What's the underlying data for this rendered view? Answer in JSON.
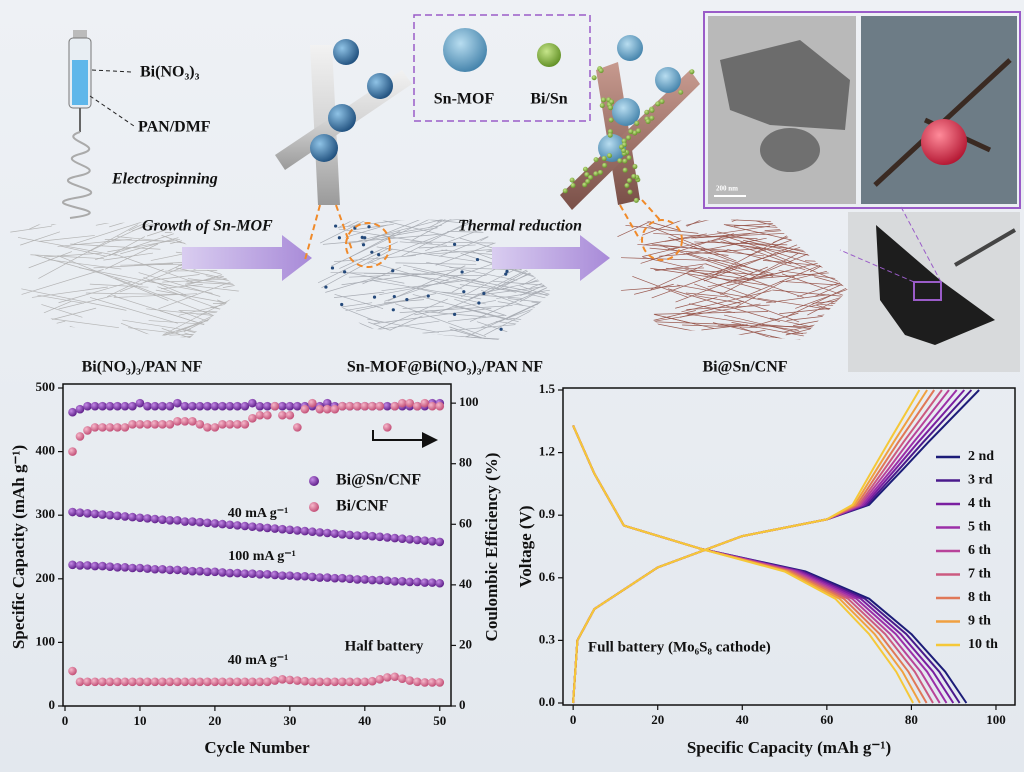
{
  "schematic": {
    "precursor": "Bi(NO₃)₃",
    "solvent": "PAN/DMF",
    "method": "Electrospinning",
    "step1": "Growth of Sn-MOF",
    "step2": "Thermal reduction",
    "product1": "Bi(NO₃)₃/PAN NF",
    "product2": "Sn-MOF@Bi(NO₃)₃/PAN NF",
    "product3": "Bi@Sn/CNF",
    "legend_mof": "Sn-MOF",
    "legend_bisn": "Bi/Sn",
    "scale_bar": "200 nm"
  },
  "chart_data": [
    {
      "type": "scatter",
      "xlabel": "Cycle Number",
      "ylabel": "Specific Capacity (mAh g⁻¹)",
      "y2label": "Coulombic Efficiency  (%)",
      "annotation": "Half battery",
      "xlim": [
        0,
        51.5
      ],
      "xticks": [
        0,
        10,
        20,
        30,
        40,
        50
      ],
      "ylim": [
        0,
        500
      ],
      "yticks": [
        0,
        100,
        200,
        300,
        400,
        500
      ],
      "y2lim": [
        0,
        105
      ],
      "y2ticks": [
        0,
        20,
        40,
        60,
        80,
        100
      ],
      "x": [
        1,
        2,
        3,
        4,
        5,
        6,
        7,
        8,
        9,
        10,
        11,
        12,
        13,
        14,
        15,
        16,
        17,
        18,
        19,
        20,
        21,
        22,
        23,
        24,
        25,
        26,
        27,
        28,
        29,
        30,
        31,
        32,
        33,
        34,
        35,
        36,
        37,
        38,
        39,
        40,
        41,
        42,
        43,
        44,
        45,
        46,
        47,
        48,
        49,
        50
      ],
      "series": [
        {
          "label": "40 mA g⁻¹",
          "color": "#7b2ea6",
          "values": [
            305,
            304,
            303,
            302,
            301,
            300,
            299,
            298,
            297,
            296,
            295,
            294,
            293,
            292,
            292,
            290,
            290,
            289,
            288,
            287,
            286,
            285,
            284,
            283,
            282,
            281,
            280,
            279,
            278,
            277,
            276,
            275,
            274,
            273,
            272,
            271,
            270,
            269,
            268,
            268,
            267,
            266,
            265,
            264,
            263,
            262,
            261,
            260,
            259,
            258
          ]
        },
        {
          "label": "100 mA g⁻¹",
          "color": "#7b2ea6",
          "values": [
            222,
            221,
            221,
            220,
            220,
            219,
            218,
            218,
            217,
            217,
            216,
            215,
            215,
            214,
            214,
            213,
            212,
            212,
            211,
            211,
            210,
            209,
            209,
            208,
            208,
            207,
            207,
            206,
            205,
            205,
            204,
            204,
            203,
            202,
            202,
            201,
            201,
            200,
            199,
            199,
            198,
            198,
            197,
            196,
            196,
            195,
            195,
            194,
            194,
            193
          ]
        },
        {
          "label": "40 mA g⁻¹",
          "color": "#d4688e",
          "values": [
            55,
            38,
            38,
            38,
            38,
            38,
            38,
            38,
            38,
            38,
            38,
            38,
            38,
            38,
            38,
            38,
            38,
            38,
            38,
            38,
            38,
            38,
            38,
            38,
            38,
            38,
            38,
            40,
            42,
            41,
            40,
            39,
            38,
            38,
            38,
            38,
            38,
            38,
            38,
            38,
            39,
            42,
            45,
            46,
            43,
            40,
            38,
            37,
            37,
            37
          ]
        },
        {
          "name": "Bi@Sn/CNF",
          "axis": "y2",
          "color": "#7b2ea6",
          "values": [
            97,
            98,
            99,
            99,
            99,
            99,
            99,
            99,
            99,
            100,
            99,
            99,
            99,
            99,
            100,
            99,
            99,
            99,
            99,
            99,
            99,
            99,
            99,
            99,
            100,
            99,
            99,
            99,
            99,
            99,
            99,
            99,
            99,
            99,
            100,
            99,
            99,
            99,
            99,
            99,
            99,
            99,
            99,
            99,
            99,
            99,
            99,
            99,
            100,
            100
          ]
        },
        {
          "name": "Bi/CNF",
          "axis": "y2",
          "color": "#d4688e",
          "values": [
            84,
            89,
            91,
            92,
            92,
            92,
            92,
            92,
            93,
            93,
            93,
            93,
            93,
            93,
            94,
            94,
            94,
            93,
            92,
            92,
            93,
            93,
            93,
            93,
            95,
            96,
            96,
            99,
            96,
            96,
            92,
            98,
            100,
            98,
            98,
            98,
            99,
            99,
            99,
            99,
            99,
            99,
            92,
            99,
            100,
            100,
            99,
            100,
            99,
            99
          ]
        }
      ]
    },
    {
      "type": "line",
      "xlabel": "Specific Capacity (mAh g⁻¹)",
      "ylabel": "Voltage (V)",
      "annotation": "Full battery (Mo₆S₈ cathode)",
      "xlim": [
        -2.4,
        104.5
      ],
      "xticks": [
        0,
        20,
        40,
        60,
        80,
        100
      ],
      "ylim": [
        0,
        1.5
      ],
      "yticks": [
        {
          "value": 0,
          "label": "0.0"
        },
        0.3,
        0.6,
        0.9,
        1.2,
        1.5
      ],
      "series": [
        {
          "name": "2 nd",
          "color": "#1c1c78",
          "x": [
            0,
            5,
            12,
            30,
            55,
            70,
            80,
            88,
            93,
            null,
            0,
            1,
            5,
            20,
            40,
            60,
            70,
            78,
            84,
            96
          ],
          "values": [
            1.33,
            1.1,
            0.85,
            0.74,
            0.63,
            0.5,
            0.33,
            0.15,
            0,
            null,
            0,
            0.3,
            0.45,
            0.65,
            0.8,
            0.88,
            0.95,
            1.12,
            1.25,
            1.5
          ]
        },
        {
          "name": "3 rd",
          "color": "#4a1a8c",
          "x": [
            0,
            5,
            12,
            30,
            54.4,
            69,
            78.8,
            86.6,
            91.4,
            null,
            0,
            1,
            5,
            20,
            40,
            60,
            69.5,
            77.1,
            82.8,
            94.2
          ],
          "values": [
            1.33,
            1.1,
            0.85,
            0.74,
            0.63,
            0.5,
            0.33,
            0.15,
            0,
            null,
            0,
            0.3,
            0.45,
            0.65,
            0.8,
            0.88,
            0.95,
            1.12,
            1.25,
            1.5
          ]
        },
        {
          "name": "4 th",
          "color": "#7a1fa0",
          "x": [
            0,
            5,
            12,
            30,
            53.8,
            68,
            77.5,
            85.1,
            89.9,
            null,
            0,
            1,
            5,
            20,
            40,
            60,
            69,
            76.2,
            81.6,
            92.5
          ],
          "values": [
            1.33,
            1.1,
            0.85,
            0.74,
            0.63,
            0.5,
            0.33,
            0.15,
            0,
            null,
            0,
            0.3,
            0.45,
            0.65,
            0.8,
            0.88,
            0.95,
            1.12,
            1.25,
            1.5
          ]
        },
        {
          "name": "5 th",
          "color": "#9b2fa8",
          "x": [
            0,
            5,
            12,
            30,
            53.1,
            67,
            76.3,
            83.7,
            88.3,
            null,
            0,
            1,
            5,
            20,
            40,
            60,
            68.5,
            75.4,
            80.5,
            90.7
          ],
          "values": [
            1.33,
            1.1,
            0.85,
            0.74,
            0.63,
            0.5,
            0.33,
            0.15,
            0,
            null,
            0,
            0.3,
            0.45,
            0.65,
            0.8,
            0.88,
            0.95,
            1.12,
            1.25,
            1.5
          ]
        },
        {
          "name": "6 th",
          "color": "#b8439a",
          "x": [
            0,
            5,
            12,
            30,
            52.5,
            66,
            75,
            82.2,
            86.7,
            null,
            0,
            1,
            5,
            20,
            40,
            60,
            68,
            74.5,
            79.3,
            88.9
          ],
          "values": [
            1.33,
            1.1,
            0.85,
            0.74,
            0.63,
            0.5,
            0.33,
            0.15,
            0,
            null,
            0,
            0.3,
            0.45,
            0.65,
            0.8,
            0.88,
            0.95,
            1.12,
            1.25,
            1.5
          ]
        },
        {
          "name": "7 th",
          "color": "#cc5a80",
          "x": [
            0,
            5,
            12,
            30,
            51.9,
            65,
            73.8,
            80.8,
            85.1,
            null,
            0,
            1,
            5,
            20,
            40,
            60,
            67.6,
            73.6,
            78.1,
            87.2
          ],
          "values": [
            1.33,
            1.1,
            0.85,
            0.74,
            0.63,
            0.5,
            0.33,
            0.15,
            0,
            null,
            0,
            0.3,
            0.45,
            0.65,
            0.8,
            0.88,
            0.95,
            1.12,
            1.25,
            1.5
          ]
        },
        {
          "name": "8 th",
          "color": "#e07858",
          "x": [
            0,
            5,
            12,
            30,
            51.3,
            64,
            72.5,
            79.3,
            83.6,
            null,
            0,
            1,
            5,
            20,
            40,
            60,
            67.1,
            72.7,
            76.9,
            85.4
          ],
          "values": [
            1.33,
            1.1,
            0.85,
            0.74,
            0.63,
            0.5,
            0.33,
            0.15,
            0,
            null,
            0,
            0.3,
            0.45,
            0.65,
            0.8,
            0.88,
            0.95,
            1.12,
            1.25,
            1.5
          ]
        },
        {
          "name": "9 th",
          "color": "#f0a040",
          "x": [
            0,
            5,
            12,
            30,
            50.6,
            63,
            71.3,
            77.9,
            82,
            null,
            0,
            1,
            5,
            20,
            40,
            60,
            66.6,
            71.8,
            75.8,
            83.7
          ],
          "values": [
            1.33,
            1.1,
            0.85,
            0.74,
            0.63,
            0.5,
            0.33,
            0.15,
            0,
            null,
            0,
            0.3,
            0.45,
            0.65,
            0.8,
            0.88,
            0.95,
            1.12,
            1.25,
            1.5
          ]
        },
        {
          "name": "10 th",
          "color": "#f5c838",
          "x": [
            0,
            5,
            12,
            30,
            50,
            62,
            70,
            76.4,
            80.4,
            null,
            0,
            1,
            5,
            20,
            40,
            60,
            66.1,
            70.9,
            74.6,
            81.9
          ],
          "values": [
            1.33,
            1.1,
            0.85,
            0.74,
            0.63,
            0.5,
            0.33,
            0.15,
            0,
            null,
            0,
            0.3,
            0.45,
            0.65,
            0.8,
            0.88,
            0.95,
            1.12,
            1.25,
            1.5
          ]
        }
      ]
    }
  ]
}
